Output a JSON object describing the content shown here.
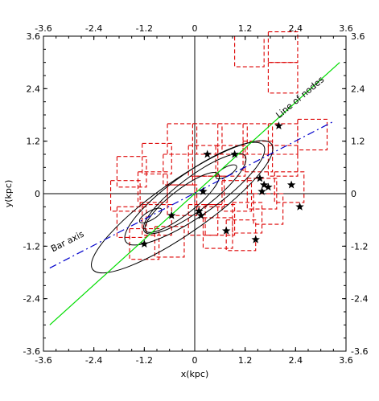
{
  "chart_data": {
    "type": "scatter",
    "title": "",
    "xlabel": "x(kpc)",
    "ylabel": "y(kpc)",
    "xlim": [
      -3.6,
      3.6
    ],
    "ylim": [
      -3.6,
      3.6
    ],
    "x_ticks": [
      "-3.6",
      "-2.4",
      "-1.2",
      "0",
      "1.2",
      "2.4",
      "3.6"
    ],
    "y_ticks": [
      "-3.6",
      "-2.4",
      "-1.2",
      "0",
      "1.2",
      "2.4",
      "3.6"
    ],
    "grid": false,
    "colors": {
      "contours": "#000000",
      "boxes": "#dd0000",
      "line_of_nodes": "#00dd00",
      "bar_axis": "#0000cc",
      "stars": "#000000"
    },
    "annotations": {
      "line_of_nodes": "Line of nodes",
      "bar_axis": "Bar axis"
    },
    "line_of_nodes": {
      "x": [
        -3.45,
        3.45
      ],
      "y": [
        -3.0,
        3.0
      ]
    },
    "bar_axis": {
      "x": [
        -3.45,
        3.3
      ],
      "y": [
        -1.7,
        1.65
      ]
    },
    "contours": [
      {
        "cx": -0.3,
        "cy": -0.3,
        "rx": 2.6,
        "ry": 0.6,
        "angle": 35
      },
      {
        "cx": 0.0,
        "cy": 0.0,
        "rx": 2.0,
        "ry": 0.5,
        "angle": 35
      },
      {
        "cx": 0.0,
        "cy": 0.0,
        "rx": 1.5,
        "ry": 0.38,
        "angle": 37
      },
      {
        "cx": -0.3,
        "cy": -0.2,
        "rx": 1.1,
        "ry": 0.28,
        "angle": 38
      },
      {
        "cx": -1.05,
        "cy": -0.5,
        "rx": 0.3,
        "ry": 0.1,
        "angle": 30
      },
      {
        "cx": 0.75,
        "cy": 0.5,
        "rx": 0.28,
        "ry": 0.1,
        "angle": 30
      }
    ],
    "boxes": [
      {
        "x": 1.3,
        "y": 3.25
      },
      {
        "x": 2.1,
        "y": 3.35
      },
      {
        "x": 2.1,
        "y": 2.65
      },
      {
        "x": 2.8,
        "y": 1.35
      },
      {
        "x": 2.1,
        "y": 1.25
      },
      {
        "x": 1.5,
        "y": 1.25
      },
      {
        "x": 0.9,
        "y": 1.25
      },
      {
        "x": 0.3,
        "y": 1.25
      },
      {
        "x": -0.3,
        "y": 1.25
      },
      {
        "x": -0.9,
        "y": 0.8
      },
      {
        "x": -1.5,
        "y": 0.5
      },
      {
        "x": -1.65,
        "y": -0.05
      },
      {
        "x": -1.0,
        "y": 0.15
      },
      {
        "x": -0.4,
        "y": 0.55
      },
      {
        "x": 0.2,
        "y": 0.75
      },
      {
        "x": 0.85,
        "y": 0.75
      },
      {
        "x": 1.5,
        "y": 0.85
      },
      {
        "x": 2.1,
        "y": 0.75
      },
      {
        "x": 2.25,
        "y": 0.15
      },
      {
        "x": 1.6,
        "y": 0.0
      },
      {
        "x": 1.0,
        "y": -0.05
      },
      {
        "x": 0.35,
        "y": 0.05
      },
      {
        "x": -0.3,
        "y": -0.15
      },
      {
        "x": -0.9,
        "y": -0.6
      },
      {
        "x": -1.5,
        "y": -0.65
      },
      {
        "x": -0.6,
        "y": -1.1
      },
      {
        "x": -1.2,
        "y": -1.15
      },
      {
        "x": 0.2,
        "y": -0.6
      },
      {
        "x": 0.6,
        "y": -0.6
      },
      {
        "x": 1.25,
        "y": -0.55
      },
      {
        "x": 1.75,
        "y": -0.35
      },
      {
        "x": 0.55,
        "y": -0.9
      },
      {
        "x": 1.1,
        "y": -0.95
      }
    ],
    "stars": [
      {
        "x": 2.0,
        "y": 1.55
      },
      {
        "x": 0.3,
        "y": 0.9
      },
      {
        "x": 0.95,
        "y": 0.9
      },
      {
        "x": 1.55,
        "y": 0.35
      },
      {
        "x": 1.65,
        "y": 0.2
      },
      {
        "x": 1.75,
        "y": 0.15
      },
      {
        "x": 1.6,
        "y": 0.05
      },
      {
        "x": 2.3,
        "y": 0.2
      },
      {
        "x": 0.2,
        "y": 0.05
      },
      {
        "x": 0.1,
        "y": -0.4
      },
      {
        "x": 0.15,
        "y": -0.5
      },
      {
        "x": -0.55,
        "y": -0.5
      },
      {
        "x": 0.75,
        "y": -0.85
      },
      {
        "x": 1.45,
        "y": -1.05
      },
      {
        "x": 2.5,
        "y": -0.3
      },
      {
        "x": -1.2,
        "y": -1.15
      }
    ]
  }
}
